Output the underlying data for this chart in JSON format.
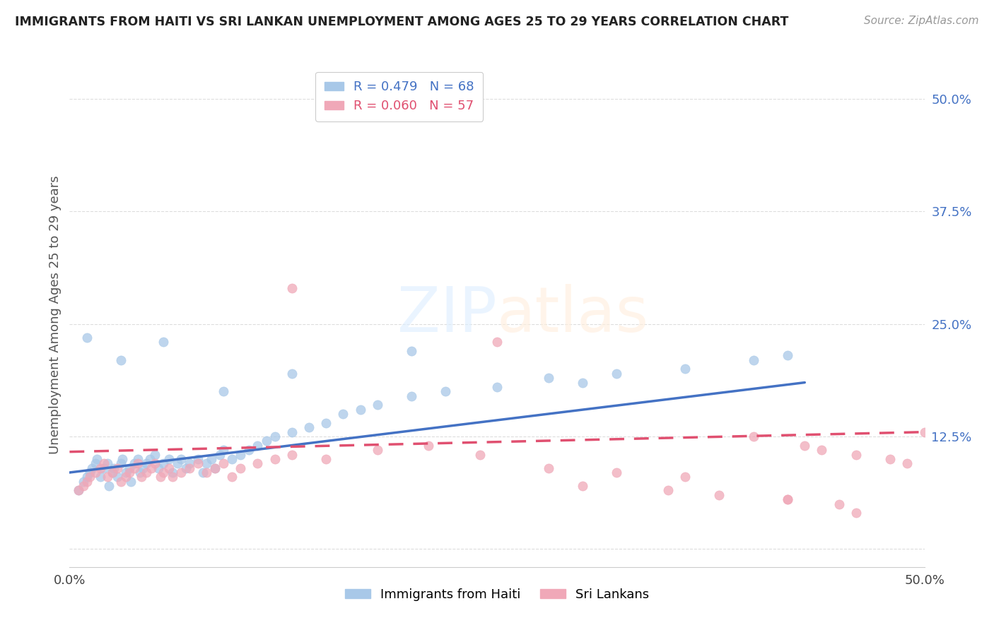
{
  "title": "IMMIGRANTS FROM HAITI VS SRI LANKAN UNEMPLOYMENT AMONG AGES 25 TO 29 YEARS CORRELATION CHART",
  "source": "Source: ZipAtlas.com",
  "ylabel": "Unemployment Among Ages 25 to 29 years",
  "xlim": [
    0.0,
    0.5
  ],
  "ylim": [
    -0.02,
    0.54
  ],
  "yticks": [
    0.0,
    0.125,
    0.25,
    0.375,
    0.5
  ],
  "ytick_labels": [
    "",
    "12.5%",
    "25.0%",
    "37.5%",
    "50.0%"
  ],
  "haiti_R": 0.479,
  "haiti_N": 68,
  "srilankan_R": 0.06,
  "srilankan_N": 57,
  "haiti_color": "#A8C8E8",
  "srilankan_color": "#F0A8B8",
  "haiti_line_color": "#4472C4",
  "srilankan_line_color": "#E05070",
  "haiti_line_x0": 0.0,
  "haiti_line_y0": 0.085,
  "haiti_line_x1": 0.43,
  "haiti_line_y1": 0.185,
  "srilankan_line_x0": 0.0,
  "srilankan_line_y0": 0.108,
  "srilankan_line_x1": 0.5,
  "srilankan_line_y1": 0.13,
  "haiti_x": [
    0.005,
    0.008,
    0.01,
    0.012,
    0.013,
    0.015,
    0.016,
    0.018,
    0.02,
    0.022,
    0.023,
    0.025,
    0.026,
    0.028,
    0.03,
    0.031,
    0.033,
    0.035,
    0.036,
    0.038,
    0.04,
    0.041,
    0.043,
    0.045,
    0.047,
    0.05,
    0.052,
    0.055,
    0.058,
    0.06,
    0.063,
    0.065,
    0.068,
    0.07,
    0.075,
    0.078,
    0.08,
    0.083,
    0.085,
    0.088,
    0.09,
    0.095,
    0.1,
    0.105,
    0.11,
    0.115,
    0.12,
    0.13,
    0.14,
    0.15,
    0.16,
    0.17,
    0.18,
    0.2,
    0.22,
    0.25,
    0.28,
    0.32,
    0.36,
    0.4,
    0.42,
    0.01,
    0.03,
    0.055,
    0.09,
    0.13,
    0.2,
    0.3
  ],
  "haiti_y": [
    0.065,
    0.075,
    0.08,
    0.085,
    0.09,
    0.095,
    0.1,
    0.08,
    0.09,
    0.095,
    0.07,
    0.085,
    0.09,
    0.08,
    0.095,
    0.1,
    0.085,
    0.09,
    0.075,
    0.095,
    0.1,
    0.085,
    0.09,
    0.095,
    0.1,
    0.105,
    0.09,
    0.095,
    0.1,
    0.085,
    0.095,
    0.1,
    0.09,
    0.095,
    0.1,
    0.085,
    0.095,
    0.1,
    0.09,
    0.105,
    0.11,
    0.1,
    0.105,
    0.11,
    0.115,
    0.12,
    0.125,
    0.13,
    0.135,
    0.14,
    0.15,
    0.155,
    0.16,
    0.17,
    0.175,
    0.18,
    0.19,
    0.195,
    0.2,
    0.21,
    0.215,
    0.235,
    0.21,
    0.23,
    0.175,
    0.195,
    0.22,
    0.185
  ],
  "srilankan_x": [
    0.005,
    0.008,
    0.01,
    0.012,
    0.015,
    0.018,
    0.02,
    0.022,
    0.025,
    0.028,
    0.03,
    0.033,
    0.035,
    0.038,
    0.04,
    0.042,
    0.045,
    0.048,
    0.05,
    0.053,
    0.055,
    0.058,
    0.06,
    0.065,
    0.07,
    0.075,
    0.08,
    0.085,
    0.09,
    0.095,
    0.1,
    0.11,
    0.12,
    0.13,
    0.15,
    0.18,
    0.21,
    0.24,
    0.28,
    0.32,
    0.36,
    0.4,
    0.43,
    0.44,
    0.46,
    0.48,
    0.49,
    0.5,
    0.42,
    0.45,
    0.13,
    0.25,
    0.3,
    0.35,
    0.38,
    0.42,
    0.46
  ],
  "srilankan_y": [
    0.065,
    0.07,
    0.075,
    0.08,
    0.085,
    0.09,
    0.095,
    0.08,
    0.085,
    0.09,
    0.075,
    0.08,
    0.085,
    0.09,
    0.095,
    0.08,
    0.085,
    0.09,
    0.095,
    0.08,
    0.085,
    0.09,
    0.08,
    0.085,
    0.09,
    0.095,
    0.085,
    0.09,
    0.095,
    0.08,
    0.09,
    0.095,
    0.1,
    0.105,
    0.1,
    0.11,
    0.115,
    0.105,
    0.09,
    0.085,
    0.08,
    0.125,
    0.115,
    0.11,
    0.105,
    0.1,
    0.095,
    0.13,
    0.055,
    0.05,
    0.29,
    0.23,
    0.07,
    0.065,
    0.06,
    0.055,
    0.04
  ]
}
